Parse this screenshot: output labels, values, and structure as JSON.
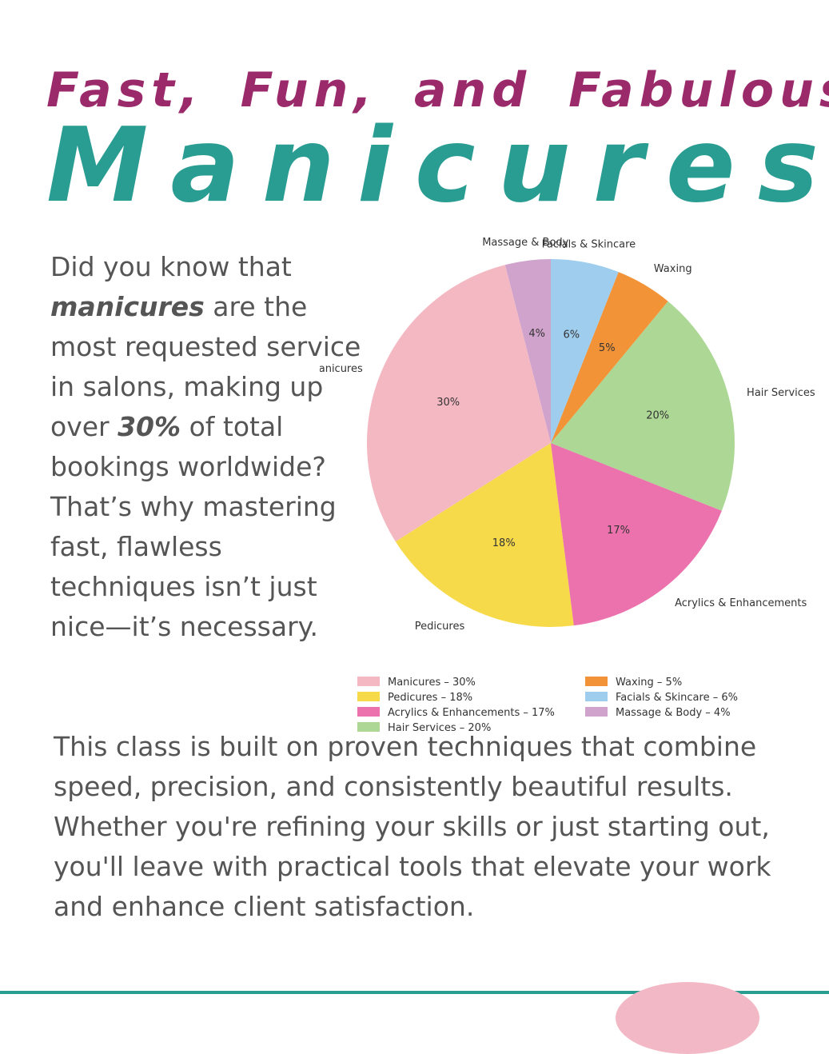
{
  "headline": "Fast, Fun, and Fabulous",
  "title": "Manicures",
  "intro": {
    "p1": "Did you know that ",
    "em1": "manicures",
    "p2": " are the most requested service in salons, making up over ",
    "em2": "30%",
    "p3": " of total bookings worldwide? That’s why mastering fast, flawless techniques isn’t just nice—it’s necessary."
  },
  "body2": "This class is built on proven techniques that combine speed, precision, and consistently beautiful results. Whether you're refining your skills or just starting out, you'll leave with practical tools that elevate your work and enhance client satisfaction.",
  "colors": {
    "headline": "#9b2a6b",
    "title": "#2a9d92",
    "text": "#555555",
    "rule": "#2a9d92"
  },
  "chart_data": {
    "type": "pie",
    "start_angle_deg": 90,
    "direction": "counterclockwise",
    "slices": [
      {
        "label": "Massage & Body",
        "value": 4,
        "pct_label": "4%",
        "legend": "Massage & Body – 4%",
        "color": "#d0a3cc"
      },
      {
        "label": "Manicures",
        "value": 30,
        "pct_label": "30%",
        "legend": "Manicures – 30%",
        "color": "#f4b8c2"
      },
      {
        "label": "Pedicures",
        "value": 18,
        "pct_label": "18%",
        "legend": "Pedicures – 18%",
        "color": "#f7da4a"
      },
      {
        "label": "Acrylics & Enhancements",
        "value": 17,
        "pct_label": "17%",
        "legend": "Acrylics & Enhancements – 17%",
        "color": "#ec72ad"
      },
      {
        "label": "Hair Services",
        "value": 20,
        "pct_label": "20%",
        "legend": "Hair Services – 20%",
        "color": "#acd795"
      },
      {
        "label": "Waxing",
        "value": 5,
        "pct_label": "5%",
        "legend": "Waxing – 5%",
        "color": "#f29337"
      },
      {
        "label": "Facials & Skincare",
        "value": 6,
        "pct_label": "6%",
        "legend": "Facials & Skincare – 6%",
        "color": "#9ecdee"
      }
    ],
    "legend_order": [
      "Manicures",
      "Pedicures",
      "Acrylics & Enhancements",
      "Hair Services",
      "Waxing",
      "Facials & Skincare",
      "Massage & Body"
    ]
  }
}
